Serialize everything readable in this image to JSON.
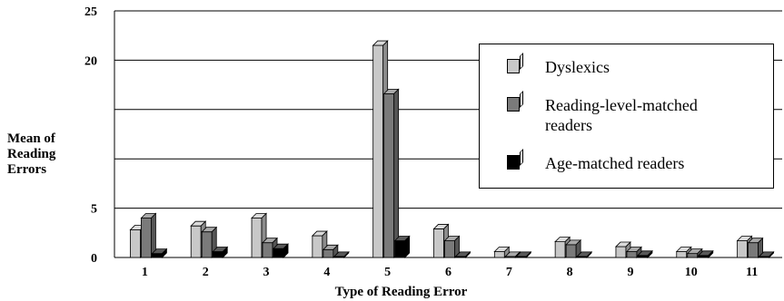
{
  "chart_data": {
    "type": "bar",
    "title": "",
    "xlabel": "Type of Reading Error",
    "ylabel": [
      "Mean of",
      "Reading",
      "Errors"
    ],
    "categories": [
      "1",
      "2",
      "3",
      "4",
      "5",
      "6",
      "7",
      "8",
      "9",
      "10",
      "11"
    ],
    "yticks": [
      "0",
      "5",
      "20",
      "25"
    ],
    "ylim": [
      0,
      25
    ],
    "grid": true,
    "legend_position": "top-right",
    "series": [
      {
        "name": "Dyslexics",
        "color": "#c8c8c8",
        "values": [
          2.8,
          3.2,
          4.0,
          2.2,
          21.5,
          2.9,
          0.6,
          1.6,
          1.1,
          0.6,
          1.7
        ]
      },
      {
        "name": "Reading-level-matched readers",
        "color": "#7a7a7a",
        "values": [
          4.0,
          2.6,
          1.5,
          0.8,
          16.6,
          1.7,
          0.1,
          1.3,
          0.6,
          0.4,
          1.5
        ]
      },
      {
        "name": "Age-matched readers",
        "color": "#000000",
        "values": [
          0.4,
          0.6,
          0.9,
          0.1,
          1.7,
          0.1,
          0.1,
          0.1,
          0.2,
          0.2,
          0.1
        ]
      }
    ]
  }
}
